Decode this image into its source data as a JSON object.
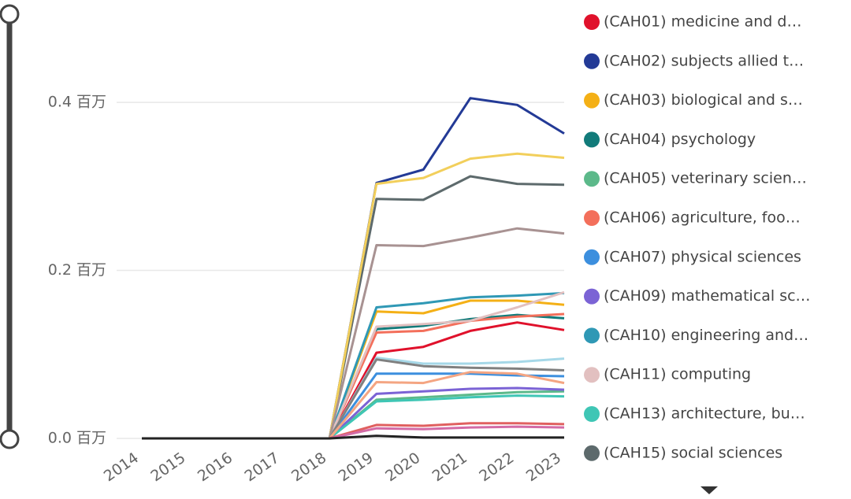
{
  "chart_data": {
    "type": "line",
    "categories": [
      "2014",
      "2015",
      "2016",
      "2017",
      "2018",
      "2019",
      "2020",
      "2021",
      "2022",
      "2023"
    ],
    "ylim": [
      0,
      0.52
    ],
    "yticks": [
      {
        "value": 0,
        "label": "0.0 百万"
      },
      {
        "value": 0.2,
        "label": "0.2 百万"
      },
      {
        "value": 0.4,
        "label": "0.4 百万"
      }
    ],
    "grid": true,
    "legend": "right",
    "series": [
      {
        "name": "(CAH01) medicine and d…",
        "color": "#e0112b",
        "values": [
          0,
          0,
          0,
          0,
          0,
          0.102,
          0.109,
          0.128,
          0.138,
          0.129
        ]
      },
      {
        "name": "(CAH02) subjects allied t…",
        "color": "#233a96",
        "values": [
          0,
          0,
          0,
          0,
          0,
          0.304,
          0.32,
          0.405,
          0.397,
          0.363
        ]
      },
      {
        "name": "(CAH03) biological and s…",
        "color": "#f4b016",
        "values": [
          0,
          0,
          0,
          0,
          0,
          0.151,
          0.149,
          0.164,
          0.164,
          0.159
        ]
      },
      {
        "name": "(CAH04) psychology",
        "color": "#127b7a",
        "values": [
          0,
          0,
          0,
          0,
          0,
          0.13,
          0.134,
          0.142,
          0.147,
          0.143
        ]
      },
      {
        "name": "(CAH05) veterinary scien…",
        "color": "#5cb98a",
        "values": [
          0,
          0,
          0,
          0,
          0,
          0.046,
          0.049,
          0.052,
          0.055,
          0.056
        ]
      },
      {
        "name": "(CAH06) agriculture, foo…",
        "color": "#f36f5b",
        "values": [
          0,
          0,
          0,
          0,
          0,
          0.126,
          0.128,
          0.14,
          0.145,
          0.148
        ]
      },
      {
        "name": "(CAH07) physical sciences",
        "color": "#3c8fde",
        "values": [
          0,
          0,
          0,
          0,
          0,
          0.077,
          0.077,
          0.077,
          0.075,
          0.074
        ]
      },
      {
        "name": "(CAH09) mathematical sc…",
        "color": "#7b63d5",
        "values": [
          0,
          0,
          0,
          0,
          0,
          0.053,
          0.056,
          0.059,
          0.06,
          0.058
        ]
      },
      {
        "name": "(CAH10) engineering and…",
        "color": "#2f98b5",
        "values": [
          0,
          0,
          0,
          0,
          0,
          0.156,
          0.161,
          0.168,
          0.17,
          0.173
        ]
      },
      {
        "name": "(CAH11) computing",
        "color": "#e2c0c0",
        "values": [
          0,
          0,
          0,
          0,
          0,
          0.133,
          0.136,
          0.14,
          0.156,
          0.174
        ]
      },
      {
        "name": "(CAH13) architecture, bu…",
        "color": "#3fc6b5",
        "values": [
          0,
          0,
          0,
          0,
          0,
          0.044,
          0.046,
          0.049,
          0.051,
          0.05
        ]
      },
      {
        "name": "(CAH15) social sciences",
        "color": "#5d6a6c",
        "values": [
          0,
          0,
          0,
          0,
          0,
          0.285,
          0.284,
          0.312,
          0.303,
          0.302
        ]
      },
      {
        "color": "#f2cf5b",
        "values": [
          0,
          0,
          0,
          0,
          0,
          0.303,
          0.31,
          0.333,
          0.339,
          0.334
        ]
      },
      {
        "color": "#a89292",
        "values": [
          0,
          0,
          0,
          0,
          0,
          0.23,
          0.229,
          0.239,
          0.25,
          0.244
        ]
      },
      {
        "color": "#a6d8e8",
        "values": [
          0,
          0,
          0,
          0,
          0,
          0.096,
          0.089,
          0.089,
          0.091,
          0.095
        ]
      },
      {
        "color": "#808080",
        "values": [
          0,
          0,
          0,
          0,
          0,
          0.094,
          0.086,
          0.084,
          0.083,
          0.081
        ]
      },
      {
        "color": "#f4a582",
        "values": [
          0,
          0,
          0,
          0,
          0,
          0.067,
          0.066,
          0.079,
          0.077,
          0.066
        ]
      },
      {
        "color": "#e06060",
        "values": [
          0,
          0,
          0,
          0,
          0,
          0.016,
          0.015,
          0.018,
          0.018,
          0.017
        ]
      },
      {
        "color": "#d36ba6",
        "values": [
          0,
          0,
          0,
          0,
          0,
          0.012,
          0.011,
          0.013,
          0.014,
          0.013
        ]
      },
      {
        "color": "#222222",
        "values": [
          0,
          0,
          0,
          0,
          0,
          0.003,
          0.001,
          0.001,
          0.001,
          0.001
        ]
      }
    ]
  }
}
